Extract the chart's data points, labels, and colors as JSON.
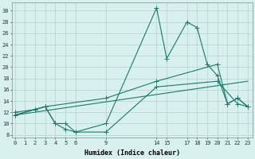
{
  "xlabel": "Humidex (Indice chaleur)",
  "bg_color": "#d8f0ee",
  "grid_color": "#b8d8d4",
  "line_color": "#1a7a6e",
  "line1_x": [
    0,
    2,
    3,
    4,
    5,
    6,
    9,
    14,
    15,
    17,
    18,
    19,
    20,
    21,
    22,
    23
  ],
  "line1_y": [
    11.5,
    12.5,
    13.0,
    10.0,
    9.0,
    8.5,
    10.0,
    30.5,
    21.5,
    28.0,
    27.0,
    20.5,
    18.5,
    13.5,
    14.5,
    13.0
  ],
  "line2_x": [
    0,
    2,
    3,
    9,
    14,
    20,
    21,
    22,
    23
  ],
  "line2_y": [
    12.0,
    12.5,
    13.0,
    14.5,
    17.5,
    20.5,
    13.5,
    14.5,
    13.0
  ],
  "line3_x": [
    0,
    23
  ],
  "line3_y": [
    11.5,
    17.5
  ],
  "line4_x": [
    0,
    2,
    3,
    4,
    5,
    6,
    9,
    14,
    20,
    22,
    23
  ],
  "line4_y": [
    11.5,
    12.5,
    13.0,
    10.0,
    10.0,
    8.5,
    8.5,
    16.5,
    17.5,
    13.5,
    13.0
  ],
  "xticks": [
    0,
    1,
    2,
    3,
    4,
    5,
    6,
    9,
    14,
    15,
    17,
    18,
    19,
    20,
    21,
    22,
    23
  ],
  "yticks": [
    8,
    10,
    12,
    14,
    16,
    18,
    20,
    22,
    24,
    26,
    28,
    30
  ],
  "xlim": [
    -0.3,
    23.5
  ],
  "ylim": [
    7.5,
    31.5
  ]
}
